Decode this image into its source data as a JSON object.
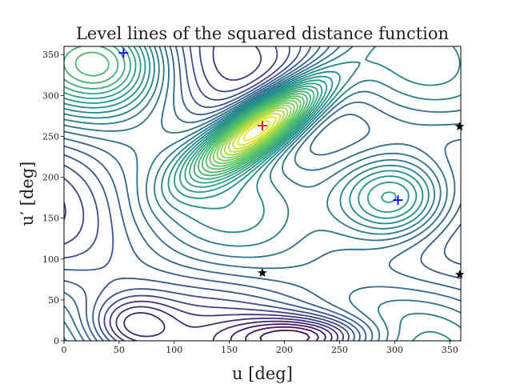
{
  "chart_data": {
    "type": "contour",
    "title": "Level lines of the squared distance function",
    "xlabel": "u [deg]",
    "ylabel": "u′ [deg]",
    "xlim": [
      0,
      360
    ],
    "ylim": [
      0,
      360
    ],
    "xticks": [
      0,
      50,
      100,
      150,
      200,
      250,
      300,
      350
    ],
    "yticks": [
      0,
      50,
      100,
      150,
      200,
      250,
      300,
      350
    ],
    "grid": false,
    "colormap": "viridis",
    "colors": {
      "low": "#440154",
      "mid": "#21918c",
      "high": "#fde725",
      "red_marker": "#ff0000",
      "blue_marker": "#0000ff",
      "star_marker": "#000000"
    },
    "markers": {
      "red_plus": [
        {
          "u": 180,
          "u_prime": 263
        }
      ],
      "blue_plus": [
        {
          "u": 54,
          "u_prime": 352
        },
        {
          "u": 303,
          "u_prime": 172
        }
      ],
      "black_star": [
        {
          "u": 180,
          "u_prime": 83
        },
        {
          "u": 359,
          "u_prime": 262
        },
        {
          "u": 359,
          "u_prime": 81
        }
      ]
    }
  }
}
